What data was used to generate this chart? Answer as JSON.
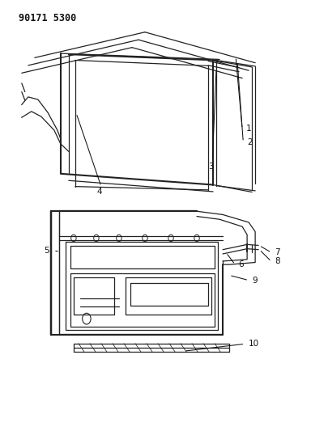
{
  "title_text": "90171 5300",
  "background_color": "#ffffff",
  "line_color": "#222222",
  "label_color": "#111111"
}
